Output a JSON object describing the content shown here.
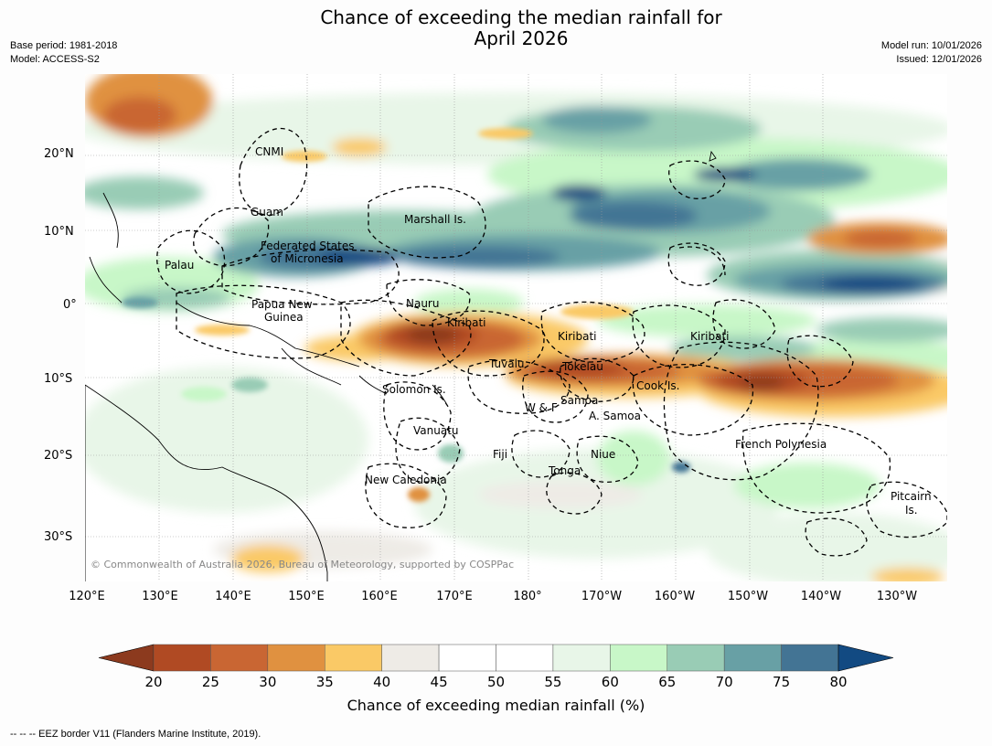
{
  "title_line1": "Chance of exceeding the median rainfall for",
  "title_line2": "April 2026",
  "meta_left": {
    "base_period": "Base period: 1981-2018",
    "model": "Model: ACCESS-S2"
  },
  "meta_right": {
    "model_run": "Model run: 10/01/2026",
    "issued": "Issued: 12/01/2026"
  },
  "copyright": "© Commonwealth of Australia 2026, Bureau of Meteorology, supported by COSPPac",
  "y_axis_labels": [
    "20°N",
    "10°N",
    "0°",
    "10°S",
    "20°S",
    "30°S"
  ],
  "x_axis_labels": [
    "120°E",
    "130°E",
    "140°E",
    "150°E",
    "160°E",
    "170°E",
    "180°",
    "170°W",
    "160°W",
    "150°W",
    "140°W",
    "130°W"
  ],
  "places": {
    "cnmi": "CNMI",
    "guam": "Guam",
    "marshall": "Marshall Is.",
    "fsm_1": "Federated States",
    "fsm_2": "of Micronesia",
    "palau": "Palau",
    "png_1": "Papua New",
    "png_2": "Guinea",
    "nauru": "Nauru",
    "kiribati_w": "Kiribati",
    "kiribati_c": "Kiribati",
    "kiribati_e": "Kiribati",
    "tuvalu": "Tuvalu",
    "tokelau": "Tokelau",
    "cook": "Cook Is.",
    "solomon": "Solomon Is.",
    "samoa": "Samoa",
    "wf": "W & F",
    "asamoa": "A. Samoa",
    "vanuatu": "Vanuatu",
    "fiji": "Fiji",
    "niue": "Niue",
    "french_poly": "French Polynesia",
    "tonga": "Tonga",
    "new_caledonia": "New Caledonia",
    "pitcairn_1": "Pitcairn",
    "pitcairn_2": "Is."
  },
  "colorbar": {
    "title": "Chance of exceeding median rainfall (%)",
    "ticks": [
      "20",
      "25",
      "30",
      "35",
      "40",
      "45",
      "50",
      "55",
      "60",
      "65",
      "70",
      "75",
      "80"
    ],
    "bins": [
      {
        "range": "<20",
        "color": "#8c3a1e"
      },
      {
        "range": "20-25",
        "color": "#b04a23"
      },
      {
        "range": "25-30",
        "color": "#c96633"
      },
      {
        "range": "30-35",
        "color": "#e09140"
      },
      {
        "range": "35-40",
        "color": "#fac966"
      },
      {
        "range": "40-45",
        "color": "#eeebe6"
      },
      {
        "range": "45-50",
        "color": "#ffffff"
      },
      {
        "range": "50-55",
        "color": "#ffffff"
      },
      {
        "range": "55-60",
        "color": "#e8f6e8"
      },
      {
        "range": "60-65",
        "color": "#c8f7c8"
      },
      {
        "range": "65-70",
        "color": "#99ccb5"
      },
      {
        "range": "70-75",
        "color": "#68a0a5"
      },
      {
        "range": "75-80",
        "color": "#437494"
      },
      {
        "range": ">80",
        "color": "#124a82"
      }
    ]
  },
  "footer": "--  --  -- EEZ border V11 (Flanders Marine Institute, 2019)."
}
